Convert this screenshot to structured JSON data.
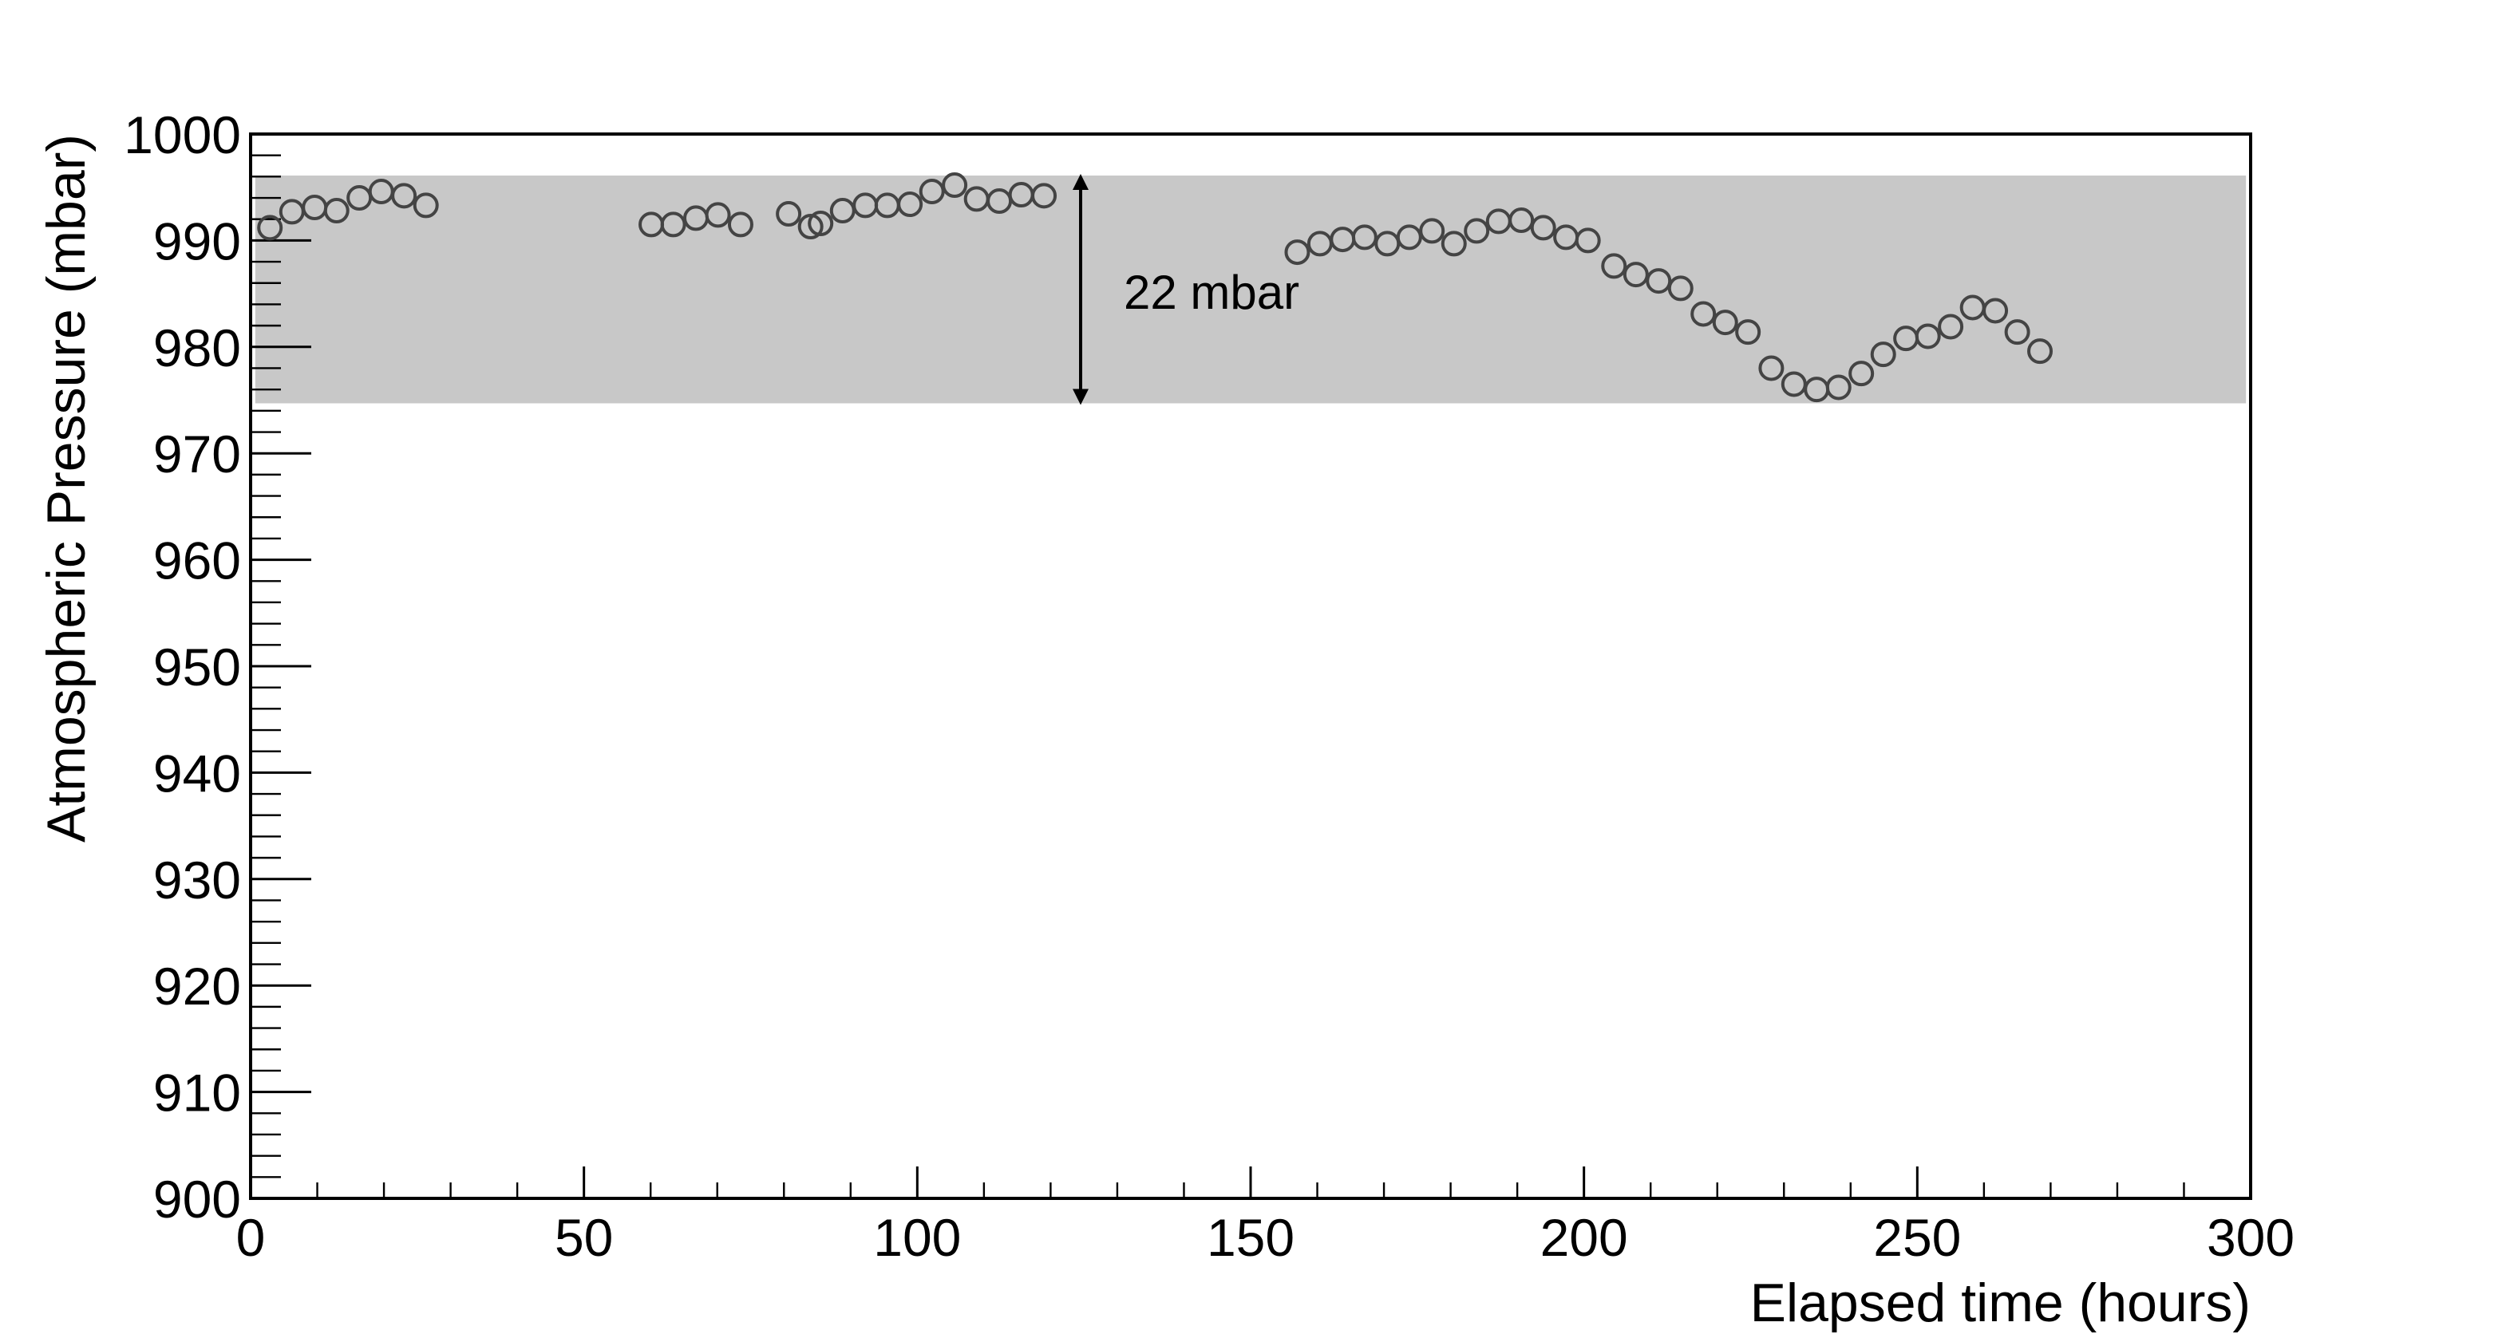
{
  "chart_data": {
    "type": "scatter",
    "x_label": "Elapsed time (hours)",
    "y_label": "Atmospheric Pressure (mbar)",
    "annotation": "22 mbar",
    "band": {
      "xlim": [
        0.7,
        299.3
      ],
      "ylim": [
        974.7,
        996.1
      ],
      "color": "#c8c8c8"
    },
    "xlim": [
      0,
      300
    ],
    "ylim": [
      900,
      1000
    ],
    "xticks": [
      0,
      50,
      100,
      150,
      200,
      250,
      300
    ],
    "yticks": [
      900,
      910,
      920,
      930,
      940,
      950,
      960,
      970,
      980,
      990,
      1000
    ],
    "series": [
      {
        "color": "#444444",
        "x": [
          2.9,
          6.2,
          9.6,
          12.9,
          16.3,
          19.6,
          23.0,
          26.3,
          60.1,
          63.4,
          66.8,
          70.1,
          73.5,
          80.7,
          84.0,
          85.5,
          88.8,
          92.2,
          95.5,
          98.9,
          102.2,
          105.6,
          108.9,
          112.3,
          115.6,
          119.0,
          157.0,
          160.4,
          163.8,
          167.1,
          170.5,
          173.8,
          177.2,
          180.5,
          183.9,
          187.2,
          190.6,
          193.9,
          197.3,
          200.6,
          204.5,
          207.8,
          211.2,
          214.5,
          217.9,
          221.2,
          224.6,
          228.1,
          231.5,
          234.9,
          238.2,
          241.6,
          244.9,
          248.3,
          251.6,
          255.0,
          258.3,
          261.7,
          265.0,
          268.4
        ],
        "values": [
          991.2,
          992.7,
          993.1,
          992.8,
          994.0,
          994.6,
          994.2,
          993.3,
          991.5,
          991.5,
          992.1,
          992.4,
          991.5,
          992.5,
          991.3,
          991.6,
          992.8,
          993.3,
          993.3,
          993.4,
          994.6,
          995.2,
          993.9,
          993.7,
          994.3,
          994.2,
          988.9,
          989.7,
          990.1,
          990.3,
          989.7,
          990.3,
          990.9,
          989.7,
          990.9,
          991.8,
          991.9,
          991.2,
          990.3,
          990.0,
          987.6,
          986.8,
          986.2,
          985.5,
          983.1,
          982.3,
          981.4,
          978.0,
          976.5,
          976.0,
          976.2,
          977.5,
          979.3,
          980.8,
          981.0,
          981.9,
          983.7,
          983.4,
          981.4,
          979.6
        ]
      }
    ]
  }
}
